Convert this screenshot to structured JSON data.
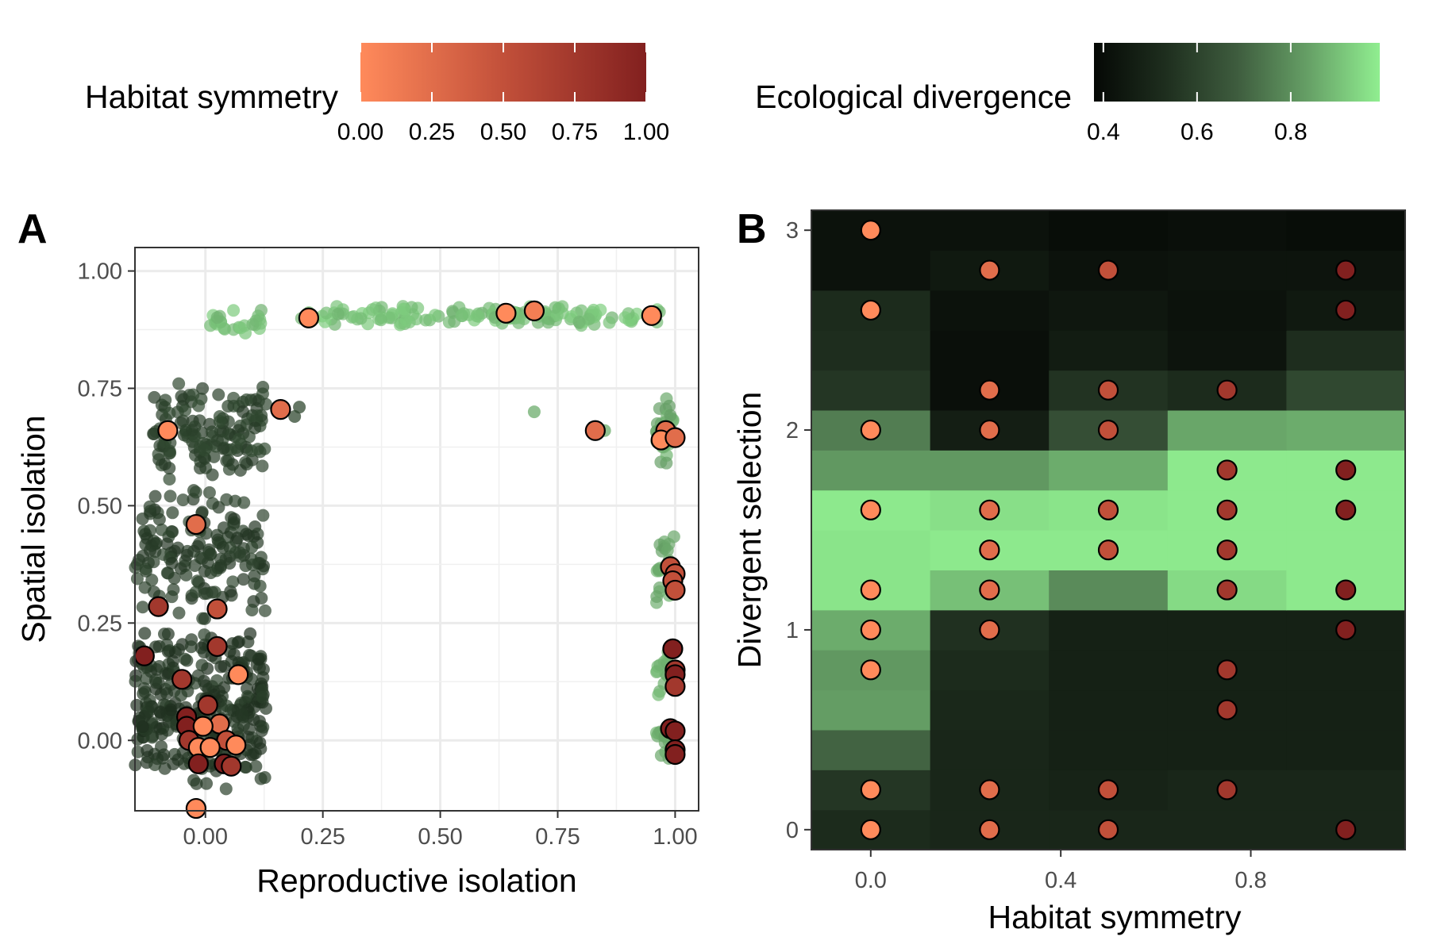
{
  "legends": {
    "habitat_symmetry": {
      "title": "Habitat symmetry",
      "ticks": [
        "0.00",
        "0.25",
        "0.50",
        "0.75",
        "1.00"
      ],
      "tick_values": [
        0,
        0.25,
        0.5,
        0.75,
        1
      ],
      "range": [
        0,
        1
      ],
      "colors": [
        "#FF8A5B",
        "#C2503A",
        "#82201F"
      ]
    },
    "ecological_divergence": {
      "title": "Ecological divergence",
      "ticks": [
        "0.4",
        "0.6",
        "0.8"
      ],
      "tick_values": [
        0.4,
        0.6,
        0.8
      ],
      "range": [
        0.38,
        0.99
      ],
      "colors": [
        "#050805",
        "#1E2E1E",
        "#3E5C3E",
        "#66A066",
        "#90EE90"
      ]
    }
  },
  "chart_data": [
    {
      "panel": "A",
      "type": "scatter",
      "xlabel": "Reproductive isolation",
      "ylabel": "Spatial isolation",
      "xlim": [
        -0.15,
        1.05
      ],
      "ylim": [
        -0.15,
        1.05
      ],
      "xticks": [
        "0.00",
        "0.25",
        "0.50",
        "0.75",
        "1.00"
      ],
      "xtick_values": [
        0,
        0.25,
        0.5,
        0.75,
        1
      ],
      "yticks": [
        "0.00",
        "0.25",
        "0.50",
        "0.75",
        "1.00"
      ],
      "ytick_values": [
        0,
        0.25,
        0.5,
        0.75,
        1
      ],
      "grid": true,
      "background_clusters_ecological_divergence": [
        {
          "x_range": [
            0.2,
            0.98
          ],
          "y_range": [
            0.88,
            0.93
          ],
          "n": 140,
          "eco": 0.9
        },
        {
          "x_range": [
            0.0,
            0.12
          ],
          "y_range": [
            0.85,
            0.92
          ],
          "n": 25,
          "eco": 0.9
        },
        {
          "x_range": [
            0.96,
            1.0
          ],
          "y_range": [
            0.58,
            0.74
          ],
          "n": 30,
          "eco": 0.86
        },
        {
          "x_range": [
            0.96,
            1.0
          ],
          "y_range": [
            0.28,
            0.46
          ],
          "n": 25,
          "eco": 0.86
        },
        {
          "x_range": [
            0.96,
            1.0
          ],
          "y_range": [
            0.08,
            0.22
          ],
          "n": 20,
          "eco": 0.86
        },
        {
          "x_range": [
            0.96,
            1.0
          ],
          "y_range": [
            -0.05,
            0.04
          ],
          "n": 20,
          "eco": 0.86
        },
        {
          "x_range": [
            -0.12,
            0.13
          ],
          "y_range": [
            0.55,
            0.77
          ],
          "n": 140,
          "eco": 0.6
        },
        {
          "x_range": [
            -0.15,
            0.13
          ],
          "y_range": [
            0.25,
            0.55
          ],
          "n": 160,
          "eco": 0.58
        },
        {
          "x_range": [
            -0.15,
            0.13
          ],
          "y_range": [
            -0.13,
            0.25
          ],
          "n": 320,
          "eco": 0.56
        }
      ],
      "outliers": [
        {
          "x": 0.7,
          "y": 0.7,
          "eco": 0.86
        },
        {
          "x": 0.85,
          "y": 0.66,
          "eco": 0.86
        },
        {
          "x": 0.19,
          "y": 0.69,
          "eco": 0.62
        },
        {
          "x": 0.2,
          "y": 0.71,
          "eco": 0.62
        }
      ],
      "highlighted_points": [
        {
          "x": 0.22,
          "y": 0.9,
          "hs": 0.0
        },
        {
          "x": 0.64,
          "y": 0.91,
          "hs": 0.0
        },
        {
          "x": 0.7,
          "y": 0.915,
          "hs": 0.1
        },
        {
          "x": 0.95,
          "y": 0.905,
          "hs": 0.0
        },
        {
          "x": 0.16,
          "y": 0.705,
          "hs": 0.25
        },
        {
          "x": -0.08,
          "y": 0.66,
          "hs": 0.0
        },
        {
          "x": 0.83,
          "y": 0.66,
          "hs": 0.25
        },
        {
          "x": 0.98,
          "y": 0.66,
          "hs": 0.25
        },
        {
          "x": 0.97,
          "y": 0.64,
          "hs": 0.0
        },
        {
          "x": 1.0,
          "y": 0.645,
          "hs": 0.25
        },
        {
          "x": -0.02,
          "y": 0.46,
          "hs": 0.25
        },
        {
          "x": 0.99,
          "y": 0.37,
          "hs": 0.5
        },
        {
          "x": 1.0,
          "y": 0.355,
          "hs": 0.5
        },
        {
          "x": 0.995,
          "y": 0.34,
          "hs": 0.5
        },
        {
          "x": 1.0,
          "y": 0.32,
          "hs": 0.5
        },
        {
          "x": -0.1,
          "y": 0.285,
          "hs": 0.75
        },
        {
          "x": 0.025,
          "y": 0.28,
          "hs": 0.5
        },
        {
          "x": 0.025,
          "y": 0.2,
          "hs": 0.75
        },
        {
          "x": -0.13,
          "y": 0.18,
          "hs": 1.0
        },
        {
          "x": 0.07,
          "y": 0.14,
          "hs": 0.0
        },
        {
          "x": -0.05,
          "y": 0.13,
          "hs": 0.75
        },
        {
          "x": 0.995,
          "y": 0.195,
          "hs": 1.0
        },
        {
          "x": 1.0,
          "y": 0.15,
          "hs": 0.75
        },
        {
          "x": 1.0,
          "y": 0.14,
          "hs": 1.0
        },
        {
          "x": 1.0,
          "y": 0.115,
          "hs": 0.75
        },
        {
          "x": 0.005,
          "y": 0.075,
          "hs": 0.75
        },
        {
          "x": -0.04,
          "y": 0.05,
          "hs": 1.0
        },
        {
          "x": -0.04,
          "y": 0.03,
          "hs": 1.0
        },
        {
          "x": 0.03,
          "y": 0.035,
          "hs": 0.25
        },
        {
          "x": -0.005,
          "y": 0.03,
          "hs": 0.0
        },
        {
          "x": -0.035,
          "y": 0.0,
          "hs": 0.75
        },
        {
          "x": 0.045,
          "y": 0.0,
          "hs": 0.5
        },
        {
          "x": -0.015,
          "y": -0.015,
          "hs": 0.0
        },
        {
          "x": 0.01,
          "y": -0.015,
          "hs": 0.0
        },
        {
          "x": 0.065,
          "y": -0.01,
          "hs": 0.0
        },
        {
          "x": -0.015,
          "y": -0.05,
          "hs": 1.0
        },
        {
          "x": 0.04,
          "y": -0.05,
          "hs": 1.0
        },
        {
          "x": 0.055,
          "y": -0.055,
          "hs": 0.75
        },
        {
          "x": -0.02,
          "y": -0.145,
          "hs": 0.0
        },
        {
          "x": 0.99,
          "y": 0.025,
          "hs": 1.0
        },
        {
          "x": 1.0,
          "y": 0.02,
          "hs": 1.0
        },
        {
          "x": 1.0,
          "y": -0.02,
          "hs": 1.0
        },
        {
          "x": 1.0,
          "y": -0.03,
          "hs": 1.0
        }
      ]
    },
    {
      "panel": "B",
      "type": "heatmap",
      "xlabel": "Habitat symmetry",
      "ylabel": "Divergent selection",
      "xlim": [
        -0.125,
        1.125
      ],
      "ylim": [
        -0.1,
        3.1
      ],
      "xticks": [
        "0.0",
        "0.4",
        "0.8"
      ],
      "xtick_values": [
        0,
        0.4,
        0.8
      ],
      "yticks": [
        "0",
        "1",
        "2",
        "3"
      ],
      "ytick_values": [
        0,
        1,
        2,
        3
      ],
      "grid": true,
      "x": [
        0,
        0.25,
        0.5,
        0.75,
        1.0
      ],
      "y": [
        0,
        0.2,
        0.4,
        0.6,
        0.8,
        1.0,
        1.2,
        1.4,
        1.6,
        1.8,
        2.0,
        2.2,
        2.4,
        2.6,
        2.8,
        3.0
      ],
      "z_ecological_divergence": [
        [
          0.52,
          0.5,
          0.5,
          0.5,
          0.5
        ],
        [
          0.56,
          0.5,
          0.49,
          0.5,
          0.5
        ],
        [
          0.7,
          0.5,
          0.48,
          0.48,
          0.48
        ],
        [
          0.83,
          0.51,
          0.48,
          0.48,
          0.48
        ],
        [
          0.82,
          0.52,
          0.48,
          0.48,
          0.48
        ],
        [
          0.86,
          0.54,
          0.48,
          0.48,
          0.48
        ],
        [
          0.97,
          0.9,
          0.79,
          0.95,
          0.98
        ],
        [
          0.97,
          0.98,
          0.98,
          0.98,
          0.98
        ],
        [
          0.98,
          0.96,
          0.97,
          0.98,
          0.98
        ],
        [
          0.82,
          0.82,
          0.86,
          0.98,
          0.98
        ],
        [
          0.76,
          0.47,
          0.64,
          0.85,
          0.86
        ],
        [
          0.56,
          0.41,
          0.55,
          0.52,
          0.62
        ],
        [
          0.53,
          0.41,
          0.46,
          0.43,
          0.53
        ],
        [
          0.52,
          0.42,
          0.44,
          0.42,
          0.45
        ],
        [
          0.42,
          0.45,
          0.42,
          0.43,
          0.43
        ],
        [
          0.42,
          0.42,
          0.4,
          0.41,
          0.4
        ]
      ],
      "points": [
        {
          "x": 0,
          "y": 3.0
        },
        {
          "x": 0.25,
          "y": 2.8
        },
        {
          "x": 0.5,
          "y": 2.8
        },
        {
          "x": 1.0,
          "y": 2.8
        },
        {
          "x": 0,
          "y": 2.6
        },
        {
          "x": 1.0,
          "y": 2.6
        },
        {
          "x": 0.25,
          "y": 2.2
        },
        {
          "x": 0.5,
          "y": 2.2
        },
        {
          "x": 0.75,
          "y": 2.2
        },
        {
          "x": 0,
          "y": 2.0
        },
        {
          "x": 0.25,
          "y": 2.0
        },
        {
          "x": 0.5,
          "y": 2.0
        },
        {
          "x": 0.75,
          "y": 1.8
        },
        {
          "x": 1.0,
          "y": 1.8
        },
        {
          "x": 0,
          "y": 1.6
        },
        {
          "x": 0.25,
          "y": 1.6
        },
        {
          "x": 0.5,
          "y": 1.6
        },
        {
          "x": 0.75,
          "y": 1.6
        },
        {
          "x": 1.0,
          "y": 1.6
        },
        {
          "x": 0.25,
          "y": 1.4
        },
        {
          "x": 0.5,
          "y": 1.4
        },
        {
          "x": 0.75,
          "y": 1.4
        },
        {
          "x": 0,
          "y": 1.2
        },
        {
          "x": 0.25,
          "y": 1.2
        },
        {
          "x": 0.75,
          "y": 1.2
        },
        {
          "x": 1.0,
          "y": 1.2
        },
        {
          "x": 0,
          "y": 1.0
        },
        {
          "x": 0.25,
          "y": 1.0
        },
        {
          "x": 1.0,
          "y": 1.0
        },
        {
          "x": 0,
          "y": 0.8
        },
        {
          "x": 0.75,
          "y": 0.8
        },
        {
          "x": 0.75,
          "y": 0.6
        },
        {
          "x": 0,
          "y": 0.2
        },
        {
          "x": 0.25,
          "y": 0.2
        },
        {
          "x": 0.5,
          "y": 0.2
        },
        {
          "x": 0.75,
          "y": 0.2
        },
        {
          "x": 0,
          "y": 0.0
        },
        {
          "x": 0.25,
          "y": 0.0
        },
        {
          "x": 0.5,
          "y": 0.0
        },
        {
          "x": 1.0,
          "y": 0.0
        }
      ]
    }
  ]
}
